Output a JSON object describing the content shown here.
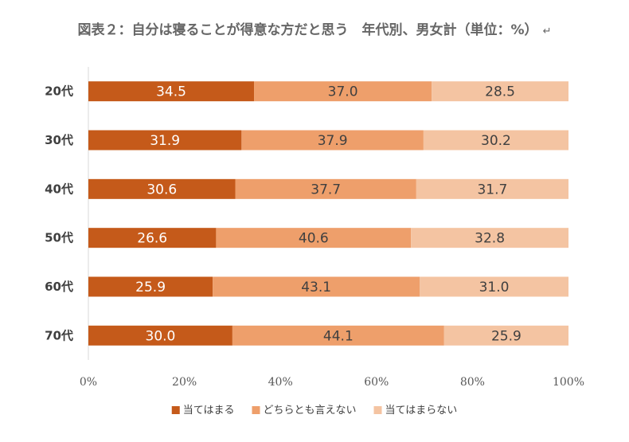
{
  "chart_data": {
    "type": "bar",
    "orientation": "horizontal",
    "stacked": "percent",
    "title": "図表２：自分は寝ることが得意な方だと思う　年代別、男女計（単位：%）",
    "title_mark": "↵",
    "categories": [
      "20代",
      "30代",
      "40代",
      "50代",
      "60代",
      "70代"
    ],
    "series": [
      {
        "name": "当てはまる",
        "color": "#C55A1A",
        "label_color": "#ffffff",
        "values": [
          34.5,
          31.9,
          30.6,
          26.6,
          25.9,
          30.0
        ],
        "labels": [
          "34.5",
          "31.9",
          "30.6",
          "26.6",
          "25.9",
          "30.0"
        ]
      },
      {
        "name": "どちらとも言えない",
        "color": "#EE9F6B",
        "label_color": "#404040",
        "values": [
          37.0,
          37.9,
          37.7,
          40.6,
          43.1,
          44.1
        ],
        "labels": [
          "37.0",
          "37.9",
          "37.7",
          "40.6",
          "43.1",
          "44.1"
        ]
      },
      {
        "name": "当てはまらない",
        "color": "#F4C4A2",
        "label_color": "#404040",
        "values": [
          28.5,
          30.2,
          31.7,
          32.8,
          31.0,
          25.9
        ],
        "labels": [
          "28.5",
          "30.2",
          "31.7",
          "32.8",
          "31.0",
          "25.9"
        ]
      }
    ],
    "xlim": [
      0,
      100
    ],
    "xticks": [
      "0%",
      "20%",
      "40%",
      "60%",
      "80%",
      "100%"
    ],
    "xlabel": "",
    "ylabel": "",
    "grid": false,
    "legend_position": "bottom"
  }
}
